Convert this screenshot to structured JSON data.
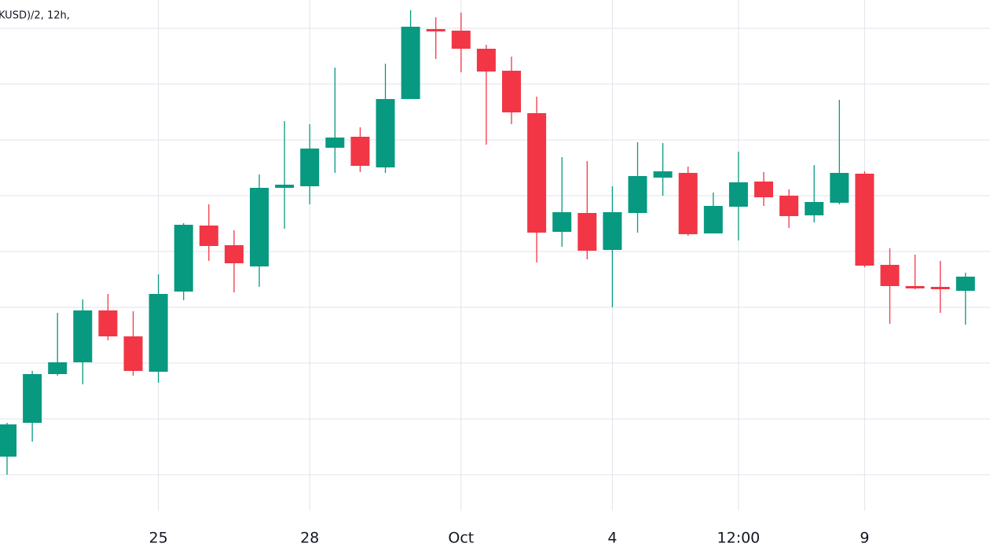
{
  "chart_data": {
    "type": "candlestick",
    "title": "KUSD)/2, 12h,",
    "categories": [
      null,
      null,
      null,
      null,
      null,
      null,
      "25",
      null,
      null,
      null,
      null,
      null,
      "28",
      null,
      null,
      null,
      null,
      null,
      "Oct",
      null,
      null,
      null,
      null,
      null,
      "4",
      null,
      null,
      null,
      null,
      "12:00",
      null,
      null,
      null,
      null,
      "9",
      null,
      null,
      null,
      null
    ],
    "open": [
      94,
      137,
      199,
      214,
      280,
      247,
      202,
      304,
      388,
      363,
      336,
      436,
      438,
      487,
      501,
      462,
      549,
      638,
      636,
      613,
      585,
      531,
      380,
      404,
      357,
      404,
      449,
      455,
      378,
      412,
      444,
      426,
      401,
      417,
      454,
      338,
      311,
      310,
      305
    ],
    "high": [
      137,
      203,
      277,
      294,
      301,
      279,
      326,
      391,
      415,
      382,
      453,
      521,
      517,
      589,
      513,
      594,
      662,
      653,
      659,
      618,
      603,
      552,
      475,
      470,
      438,
      494,
      493,
      463,
      430,
      482,
      456,
      434,
      465,
      548,
      457,
      359,
      351,
      343,
      328
    ],
    "low": [
      71,
      113,
      197,
      186,
      242,
      197,
      188,
      293,
      343,
      303,
      310,
      384,
      415,
      455,
      456,
      455,
      549,
      600,
      583,
      491,
      517,
      341,
      361,
      345,
      284,
      379,
      426,
      375,
      378,
      369,
      413,
      385,
      392,
      415,
      335,
      263,
      307,
      277,
      262
    ],
    "close": [
      135,
      199,
      214,
      280,
      247,
      203,
      301,
      389,
      362,
      340,
      436,
      440,
      486,
      500,
      464,
      549,
      641,
      635,
      613,
      584,
      532,
      379,
      405,
      356,
      405,
      451,
      457,
      377,
      413,
      443,
      424,
      400,
      418,
      455,
      337,
      311,
      308,
      307,
      323
    ],
    "up_color": "#089981",
    "down_color": "#f23645",
    "ylim": [
      25,
      675
    ],
    "ygrid": [
      71,
      142,
      213,
      284,
      355,
      426,
      497,
      568,
      639
    ],
    "grid": true
  }
}
